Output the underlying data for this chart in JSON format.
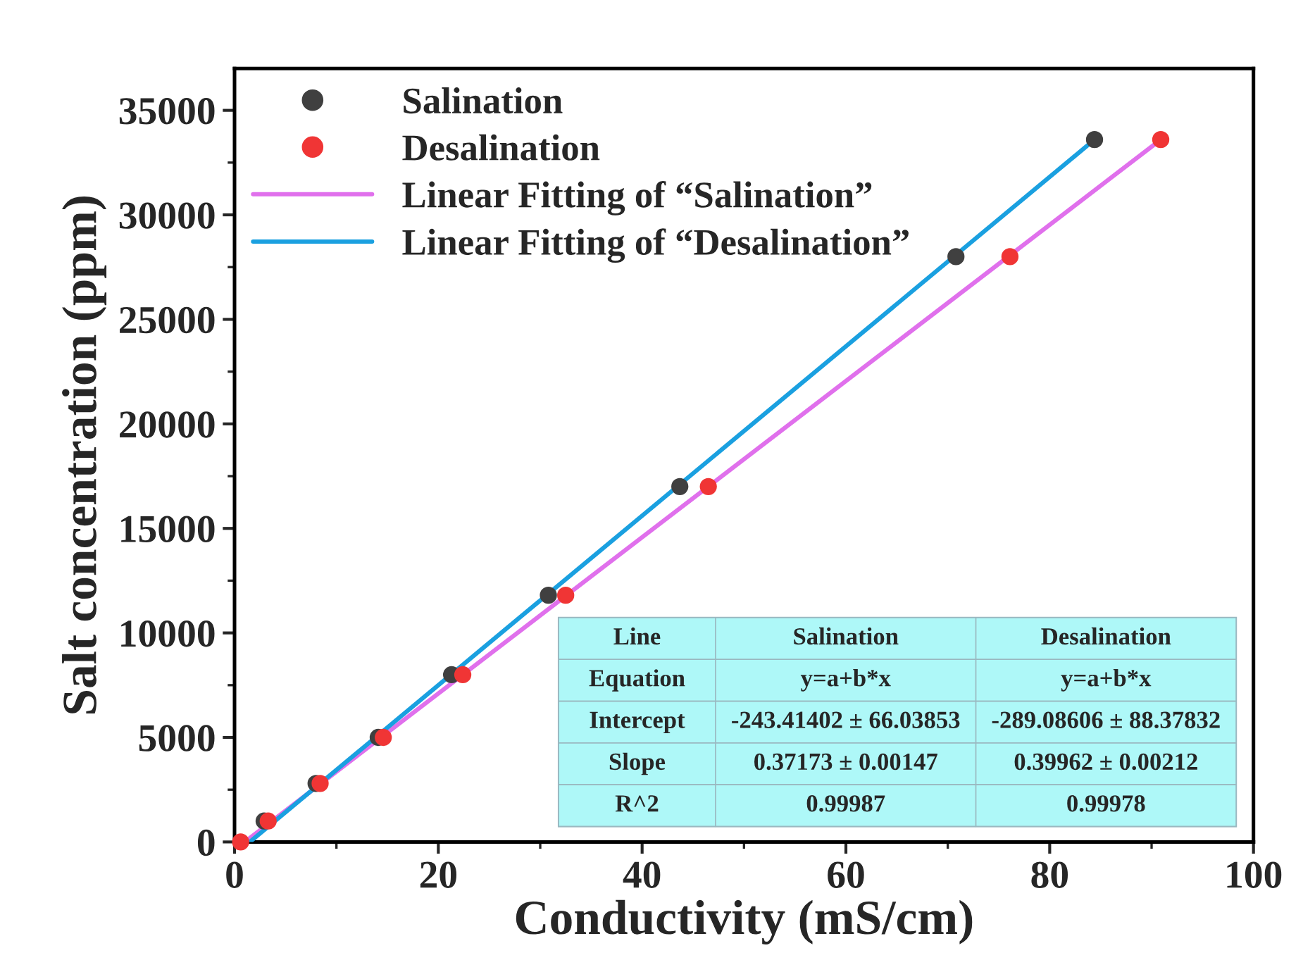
{
  "chart_data": {
    "type": "scatter",
    "xlabel": "Conductivity (mS/cm)",
    "ylabel": "Salt concentration (ppm)",
    "series": [
      {
        "name": "Salination",
        "color": "#404040",
        "marker": "circle",
        "x": [
          2.9,
          8.0,
          14.1,
          21.3,
          30.8,
          43.7,
          70.8,
          84.4
        ],
        "values": [
          1000,
          2800,
          5000,
          8000,
          11800,
          17000,
          28000,
          33600
        ]
      },
      {
        "name": "Desalination",
        "color": "#f03535",
        "marker": "circle",
        "x": [
          0.6,
          3.3,
          8.4,
          14.6,
          22.4,
          32.5,
          46.5,
          76.1,
          90.9
        ],
        "values": [
          0,
          1000,
          2800,
          5000,
          8000,
          11800,
          17000,
          28000,
          33600
        ]
      },
      {
        "name": "Linear Fitting of “Salination”",
        "type": "line",
        "color": "#e070ec",
        "x": [
          1.0,
          90.9
        ],
        "values": [
          0,
          33600
        ]
      },
      {
        "name": "Linear Fitting of “Desalination”",
        "type": "line",
        "color": "#1aa0e0",
        "x": [
          1.5,
          84.4
        ],
        "values": [
          0,
          33600
        ]
      }
    ],
    "xlim": [
      0,
      100
    ],
    "xticks": [
      0,
      20,
      40,
      60,
      80,
      100
    ],
    "ylim": [
      0,
      37000
    ],
    "yticks": [
      0,
      5000,
      10000,
      15000,
      20000,
      25000,
      30000,
      35000
    ],
    "legend": "top left",
    "grid": false,
    "line_style": "solid",
    "annotations": [
      "Line",
      "Salination",
      "Desalination",
      "Equation",
      "y=a+b*x",
      "y=a+b*x",
      "Intercept",
      "-243.41402 ± 66.03853",
      "-289.08606 ± 88.37832",
      "Slope",
      "0.37173 ± 0.00147",
      "0.39962 ± 0.00212",
      "R^2",
      "0.99987",
      "0.99978"
    ]
  }
}
